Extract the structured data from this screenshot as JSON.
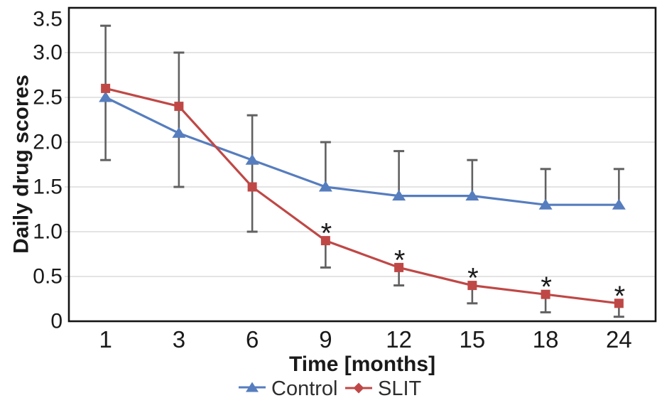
{
  "chart_data": {
    "type": "line",
    "title": "",
    "xlabel": "Time [months]",
    "ylabel": "Daily drug scores",
    "categories": [
      "1",
      "3",
      "6",
      "9",
      "12",
      "15",
      "18",
      "24"
    ],
    "ylim": [
      0,
      3.5
    ],
    "yticks": [
      {
        "value": 3.5,
        "label": "3.5"
      },
      {
        "value": 3.0,
        "label": "3.0"
      },
      {
        "value": 2.5,
        "label": "2.5"
      },
      {
        "value": 2.0,
        "label": "2.0"
      },
      {
        "value": 1.5,
        "label": "1.5"
      },
      {
        "value": 1.0,
        "label": "1.0"
      },
      {
        "value": 0.5,
        "label": "0.5"
      },
      {
        "value": 0,
        "label": "0"
      }
    ],
    "grid": "horizontal-gridlines-at-0.5-steps",
    "legend_position": "bottom-center",
    "series": [
      {
        "name": "Control",
        "marker": "triangle",
        "legend_marker": "triangle",
        "color": "#567dbe",
        "values": [
          2.5,
          2.1,
          1.8,
          1.5,
          1.4,
          1.4,
          1.3,
          1.3
        ]
      },
      {
        "name": "SLIT",
        "marker": "square",
        "legend_marker": "diamond",
        "color": "#bf4846",
        "values": [
          2.6,
          2.4,
          1.5,
          0.9,
          0.6,
          0.4,
          0.3,
          0.2
        ]
      }
    ],
    "error_whiskers": [
      {
        "x": "1",
        "low": 1.8,
        "high": 3.3,
        "cap_low": true,
        "cap_high": true
      },
      {
        "x": "3",
        "low": 1.5,
        "high": 3.0,
        "cap_low": true,
        "cap_high": true
      },
      {
        "x": "6",
        "low": 1.0,
        "high": 2.3,
        "cap_low": true,
        "cap_high": true
      },
      {
        "x": "9",
        "low": 1.5,
        "high": 2.0,
        "cap_low": false,
        "cap_high": true
      },
      {
        "x": "9",
        "low": 0.6,
        "high": 0.9,
        "cap_low": true,
        "cap_high": false
      },
      {
        "x": "12",
        "low": 1.4,
        "high": 1.9,
        "cap_low": false,
        "cap_high": true
      },
      {
        "x": "12",
        "low": 0.4,
        "high": 0.6,
        "cap_low": true,
        "cap_high": false
      },
      {
        "x": "15",
        "low": 1.4,
        "high": 1.8,
        "cap_low": false,
        "cap_high": true
      },
      {
        "x": "15",
        "low": 0.2,
        "high": 0.4,
        "cap_low": true,
        "cap_high": false
      },
      {
        "x": "18",
        "low": 1.3,
        "high": 1.7,
        "cap_low": false,
        "cap_high": true
      },
      {
        "x": "18",
        "low": 0.1,
        "high": 0.3,
        "cap_low": true,
        "cap_high": false
      },
      {
        "x": "24",
        "low": 1.3,
        "high": 1.7,
        "cap_low": false,
        "cap_high": true
      },
      {
        "x": "24",
        "low": 0.05,
        "high": 0.2,
        "cap_low": true,
        "cap_high": false
      }
    ],
    "significance_marks": [
      {
        "series": "SLIT",
        "x": "9",
        "symbol": "*"
      },
      {
        "series": "SLIT",
        "x": "12",
        "symbol": "*"
      },
      {
        "series": "SLIT",
        "x": "15",
        "symbol": "*"
      },
      {
        "series": "SLIT",
        "x": "18",
        "symbol": "*"
      },
      {
        "series": "SLIT",
        "x": "24",
        "symbol": "*"
      }
    ],
    "colors": {
      "control": "#567dbe",
      "slit": "#bf4846",
      "error_bar": "#616161",
      "gridline": "#dcdcdc",
      "frame": "#141414",
      "text": "#1a1a1a"
    }
  }
}
